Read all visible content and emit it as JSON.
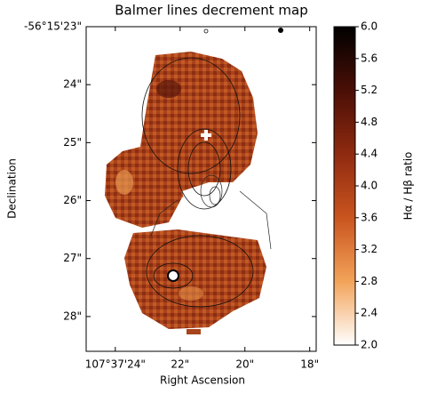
{
  "chart_data": {
    "type": "map",
    "title": "Balmer lines decrement map",
    "xlabel": "Right Ascension",
    "ylabel": "Declination",
    "xlim": [
      24.9,
      17.8
    ],
    "xticks": [
      {
        "value": 24,
        "label": "107°37'24\""
      },
      {
        "value": 22,
        "label": "22\""
      },
      {
        "value": 20,
        "label": "20\""
      },
      {
        "value": 18,
        "label": "18\""
      }
    ],
    "ylim": [
      23.0,
      28.6
    ],
    "yticks": [
      {
        "value": 23,
        "label": "-56°15'23\""
      },
      {
        "value": 24,
        "label": "24\""
      },
      {
        "value": 25,
        "label": "25\""
      },
      {
        "value": 26,
        "label": "26\""
      },
      {
        "value": 27,
        "label": "27\""
      },
      {
        "value": 28,
        "label": "28\""
      }
    ],
    "colorbar": {
      "label": "Hα / Hβ ratio",
      "lim": [
        2.0,
        6.0
      ],
      "ticks": [
        {
          "value": 2.0,
          "label": "2.0"
        },
        {
          "value": 2.4,
          "label": "2.4"
        },
        {
          "value": 2.8,
          "label": "2.8"
        },
        {
          "value": 3.2,
          "label": "3.2"
        },
        {
          "value": 3.6,
          "label": "3.6"
        },
        {
          "value": 4.0,
          "label": "4.0"
        },
        {
          "value": 4.4,
          "label": "4.4"
        },
        {
          "value": 4.8,
          "label": "4.8"
        },
        {
          "value": 5.2,
          "label": "5.2"
        },
        {
          "value": 5.6,
          "label": "5.6"
        },
        {
          "value": 6.0,
          "label": "6.0"
        }
      ],
      "colors": [
        "#ffffff",
        "#f3a35a",
        "#c9541e",
        "#8f2a10",
        "#4a0f06",
        "#000000"
      ]
    }
  }
}
